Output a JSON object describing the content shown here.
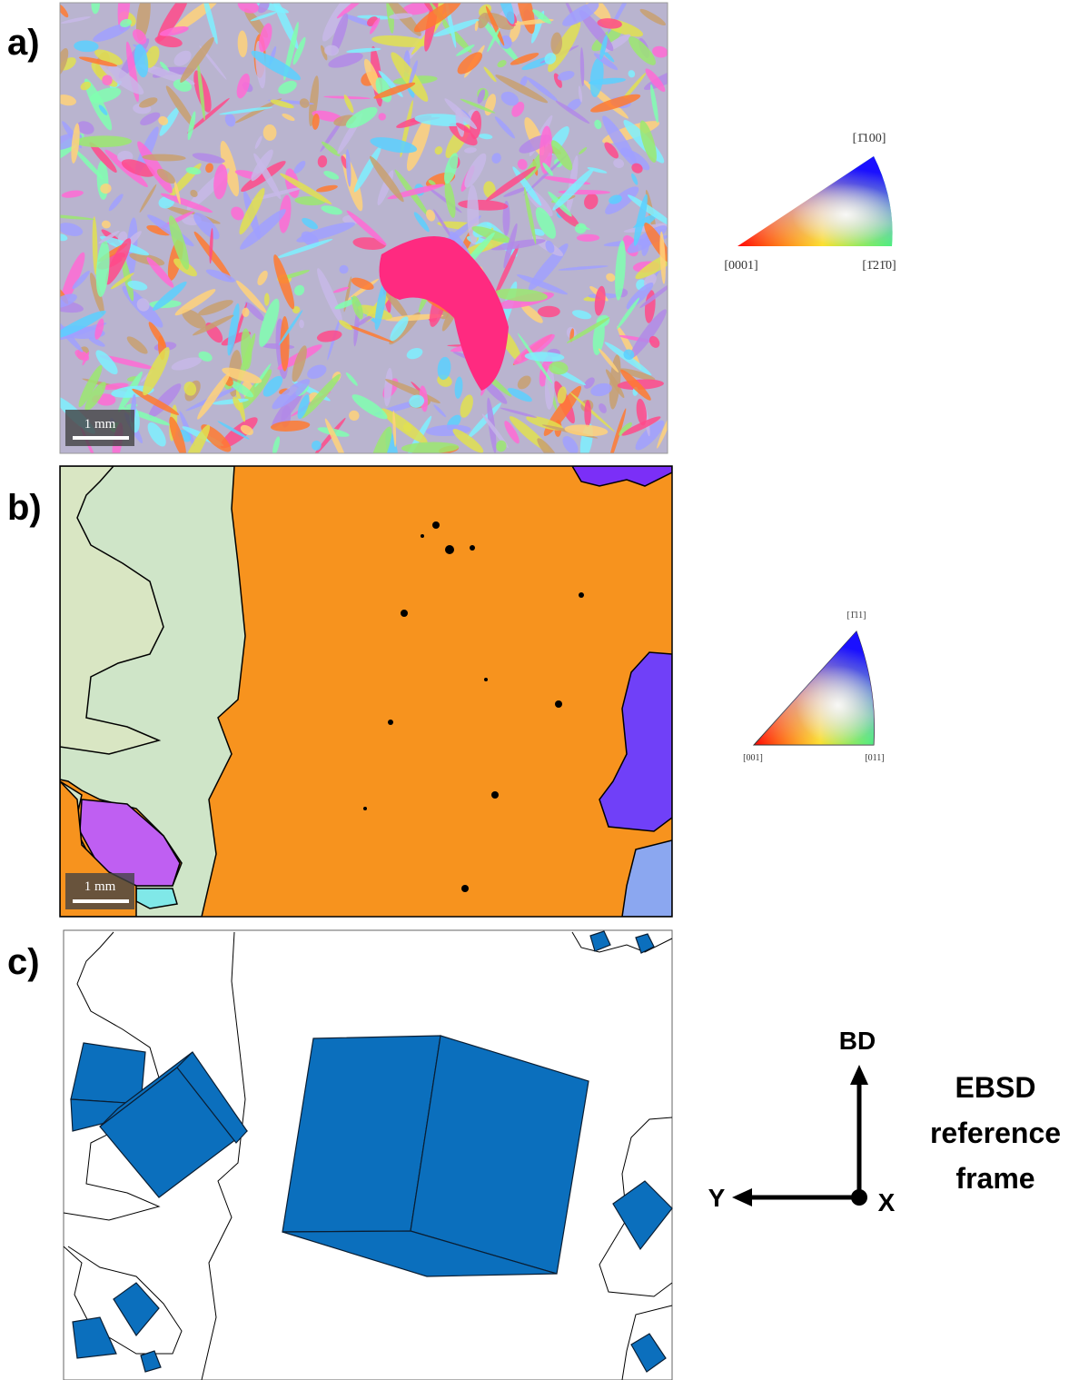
{
  "panels": [
    {
      "label": "a)",
      "scale_bar": "1 mm",
      "ipf_legend": {
        "top": "[1̄100]",
        "left": "[0001]",
        "right": "[1̄21̄0]"
      }
    },
    {
      "label": "b)",
      "scale_bar": "1 mm",
      "ipf_legend": {
        "top": "[1̄11]",
        "left": "[001]",
        "right": "[011]"
      }
    },
    {
      "label": "c)"
    }
  ],
  "reference_frame": {
    "vertical_axis": "BD",
    "horizontal_axis": "Y",
    "normal_axis": "X",
    "title_lines": [
      "EBSD",
      "reference",
      "frame"
    ]
  }
}
